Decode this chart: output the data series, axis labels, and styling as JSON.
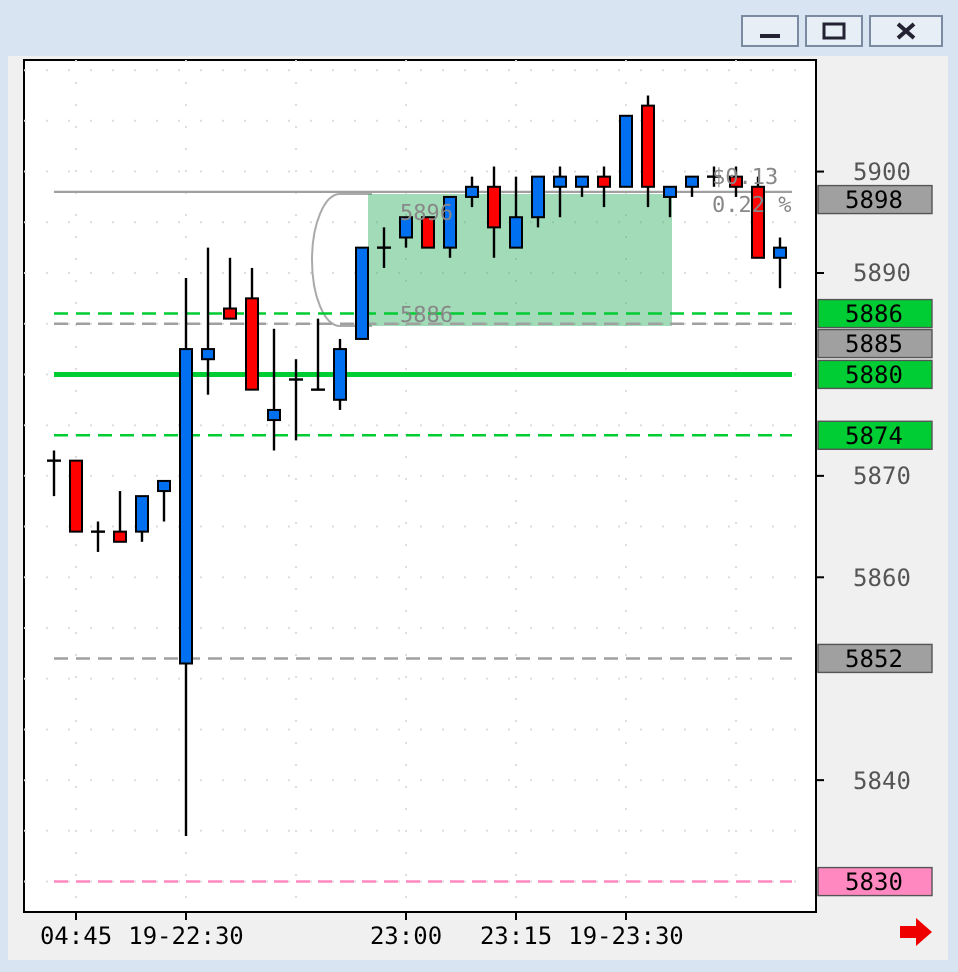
{
  "chart_data": {
    "type": "candlestick",
    "categories": [
      null,
      "04:45",
      null,
      null,
      null,
      null,
      "19-22:30",
      null,
      null,
      null,
      null,
      null,
      null,
      null,
      null,
      null,
      "23:00",
      null,
      null,
      null,
      null,
      "23:15",
      null,
      null,
      null,
      null,
      "19-23:30",
      null,
      null,
      null,
      null,
      null,
      null,
      null
    ],
    "ohlc": [
      [
        5871.5,
        5872.5,
        5868,
        5871.5
      ],
      [
        5871.5,
        5871.5,
        5864.5,
        5864.5
      ],
      [
        5864.5,
        5865.5,
        5862.5,
        5864.5
      ],
      [
        5864.5,
        5868.5,
        5863.5,
        5863.5
      ],
      [
        5864.5,
        5868,
        5863.5,
        5868
      ],
      [
        5868.5,
        5869.5,
        5865.5,
        5869.5
      ],
      [
        5851.5,
        5889.5,
        5834.5,
        5882.5
      ],
      [
        5881.5,
        5892.5,
        5878,
        5882.5
      ],
      [
        5886.5,
        5891.5,
        5885.5,
        5885.5
      ],
      [
        5887.5,
        5890.5,
        5878.5,
        5878.5
      ],
      [
        5875.5,
        5884.5,
        5872.5,
        5876.5
      ],
      [
        5879.5,
        5881.5,
        5873.5,
        5879.5
      ],
      [
        5878.5,
        5885.5,
        5878.5,
        5878.5
      ],
      [
        5877.5,
        5883.5,
        5876.5,
        5882.5
      ],
      [
        5883.5,
        5892.5,
        5883.5,
        5892.5
      ],
      [
        5892.5,
        5894.5,
        5890.5,
        5892.5
      ],
      [
        5893.5,
        5895.5,
        5892.5,
        5895.5
      ],
      [
        5895.5,
        5895.5,
        5892.5,
        5892.5
      ],
      [
        5892.5,
        5897.5,
        5891.5,
        5897.5
      ],
      [
        5897.5,
        5899.5,
        5896.5,
        5898.5
      ],
      [
        5898.5,
        5900.5,
        5891.5,
        5894.5
      ],
      [
        5892.5,
        5899.5,
        5892.5,
        5895.5
      ],
      [
        5895.5,
        5899.5,
        5894.5,
        5899.5
      ],
      [
        5898.5,
        5900.5,
        5895.5,
        5899.5
      ],
      [
        5898.5,
        5899.5,
        5897.5,
        5899.5
      ],
      [
        5899.5,
        5900.5,
        5896.5,
        5898.5
      ],
      [
        5898.5,
        5905.5,
        5898.5,
        5905.5
      ],
      [
        5906.5,
        5907.5,
        5896.5,
        5898.5
      ],
      [
        5897.5,
        5898.5,
        5895.5,
        5898.5
      ],
      [
        5898.5,
        5899.5,
        5897.5,
        5899.5
      ],
      [
        5899.5,
        5900.5,
        5898.5,
        5899.5
      ],
      [
        5899.5,
        5900.5,
        5897.5,
        5898.5
      ],
      [
        5898.5,
        5899.5,
        5891.5,
        5891.5
      ],
      [
        5891.5,
        5893.5,
        5888.5,
        5892.5
      ]
    ],
    "ylim": [
      5827,
      5911
    ],
    "yticks": [
      5840,
      5860,
      5870,
      5890,
      5900
    ],
    "grid": true,
    "ref_lines": [
      {
        "axis": "y",
        "value": 5898,
        "label": "5898",
        "color": "#a0a0a0",
        "line_style": "solid"
      },
      {
        "axis": "y",
        "value": 5886,
        "label": "5886",
        "color": "#00cc33",
        "line_style": "dashed"
      },
      {
        "axis": "y",
        "value": 5885,
        "label": "5885",
        "color": "#a0a0a0",
        "line_style": "dashed"
      },
      {
        "axis": "y",
        "value": 5880,
        "label": "5880",
        "color": "#00cc33",
        "line_style": "solid"
      },
      {
        "axis": "y",
        "value": 5874,
        "label": "5874",
        "color": "#00cc33",
        "line_style": "dashed"
      },
      {
        "axis": "y",
        "value": 5852,
        "label": "5852",
        "color": "#a0a0a0",
        "line_style": "dashed"
      },
      {
        "axis": "y",
        "value": 5830,
        "label": "5830",
        "color": "#ff88c0",
        "line_style": "dashed"
      }
    ],
    "annotations": [
      {
        "text": "5896",
        "y": 5896
      },
      {
        "text": "5886",
        "y": 5886
      },
      "$0.13",
      "0.22 %"
    ]
  }
}
